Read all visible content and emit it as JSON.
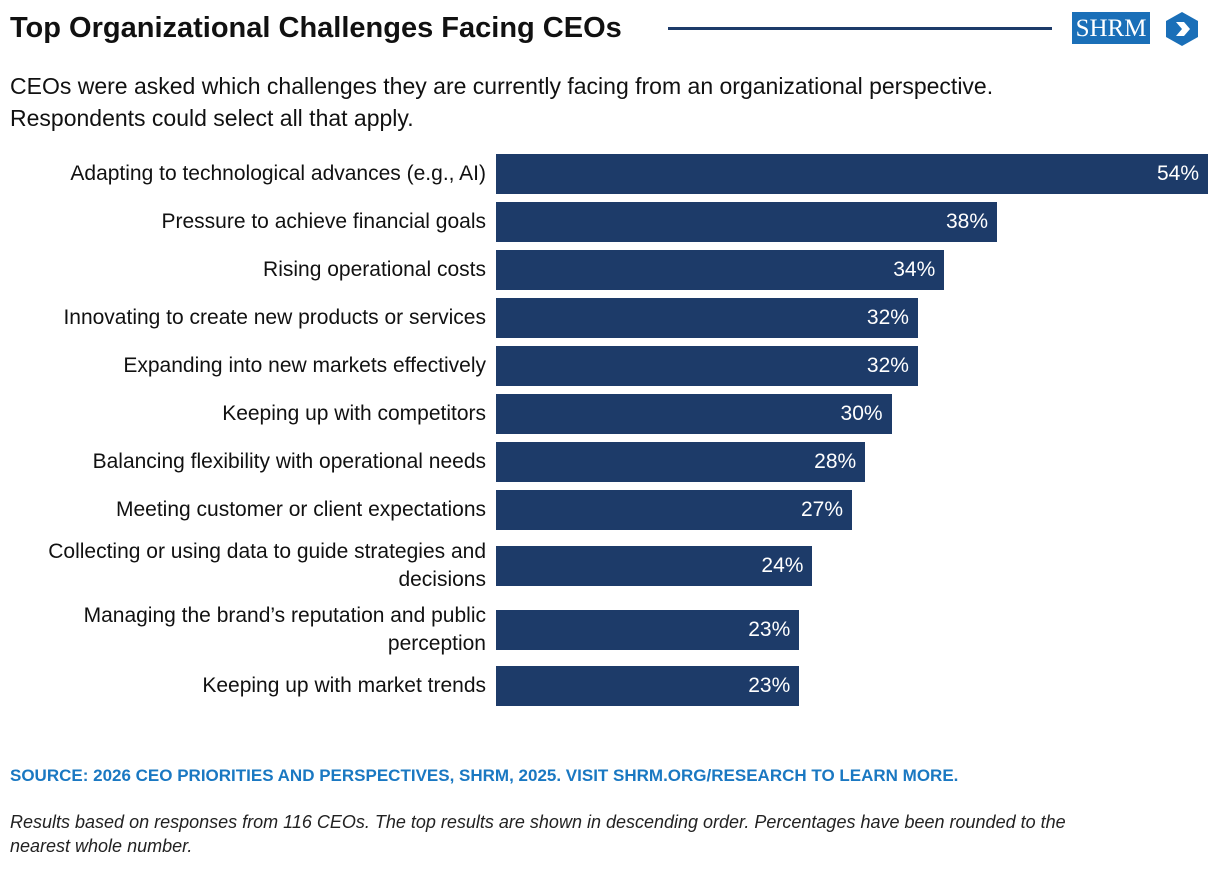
{
  "chart_data": {
    "type": "bar",
    "orientation": "horizontal",
    "title": "Top Organizational Challenges Facing CEOs",
    "logo": "SHRM",
    "subtitle": [
      "CEOs were asked which challenges they are currently facing from an organizational perspective.",
      "Respondents could select all that apply."
    ],
    "categories": [
      "Adapting to technological advances (e.g., AI)",
      "Pressure to achieve financial goals",
      "Rising operational costs",
      "Innovating to create new products or services",
      "Expanding into new markets effectively",
      "Keeping up with competitors",
      "Balancing flexibility with operational needs",
      "Meeting customer or client expectations",
      "Collecting or using data to guide strategies and decisions",
      "Managing the brand’s reputation and public perception",
      "Keeping up with market trends"
    ],
    "values": [
      54,
      38,
      34,
      32,
      32,
      30,
      28,
      27,
      24,
      23,
      23
    ],
    "value_labels": [
      "54%",
      "38%",
      "34%",
      "32%",
      "32%",
      "30%",
      "28%",
      "27%",
      "24%",
      "23%",
      "23%"
    ],
    "color": "#1d3b69",
    "source": "SOURCE: 2026 CEO PRIORITIES AND PERSPECTIVES, SHRM, 2025. VISIT SHRM.ORG/RESEARCH TO LEARN MORE.",
    "note": [
      "Results based on responses from 116 CEOs. The top results are shown in descending order. Percentages have been rounded to the",
      "nearest whole number."
    ]
  }
}
